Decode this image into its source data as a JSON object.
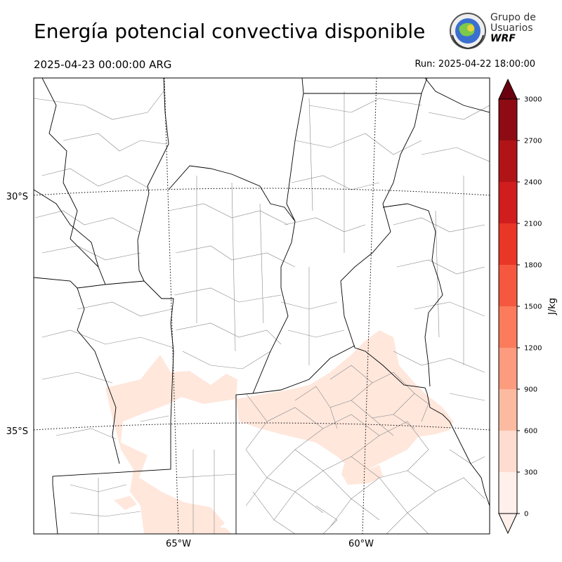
{
  "header": {
    "title": "Energía potencial convectiva disponible",
    "valid_time": "2025-04-23 00:00:00 ARG",
    "run_time": "Run: 2025-04-22 18:00:00"
  },
  "logo": {
    "line1": "Grupo de",
    "line2": "Usuarios",
    "line3": "WRF"
  },
  "map": {
    "lat_labels": [
      "30°S",
      "35°S"
    ],
    "lon_labels": [
      "65°W",
      "60°W"
    ]
  },
  "colorbar": {
    "unit": "J/kg",
    "levels": [
      0,
      300,
      600,
      900,
      1200,
      1500,
      1800,
      2100,
      2400,
      2700,
      3000
    ],
    "tick_labels": [
      "0",
      "300",
      "600",
      "900",
      "1200",
      "1500",
      "1800",
      "2100",
      "2400",
      "2700",
      "3000"
    ],
    "colors": [
      "#fff0eb",
      "#fedcd0",
      "#fcbba1",
      "#fc9b7e",
      "#fb7b5c",
      "#f5583e",
      "#e93627",
      "#d01e1e",
      "#b11417",
      "#8e0b13",
      "#6b0010"
    ],
    "extend": "both"
  },
  "colors": {
    "cape_low": "#ffe7dc",
    "border": "#000000",
    "department": "#888888"
  }
}
